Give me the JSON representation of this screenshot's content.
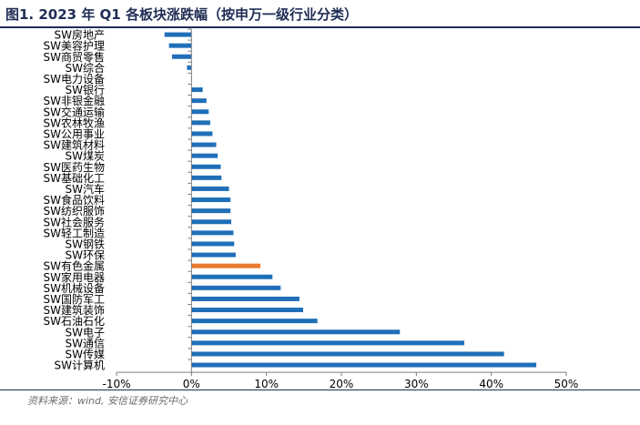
{
  "header": {
    "title": "图1. 2023 年 Q1 各板块涨跌幅（按申万一级行业分类）"
  },
  "footer": {
    "source": "资料来源：wind, 安信证券研究中心"
  },
  "colors": {
    "bar": "#1f6fb8",
    "highlight": "#e8792d",
    "axis": "#7f7f7f",
    "text": "#000000",
    "title": "#1f2d55"
  },
  "chart_data": {
    "type": "bar",
    "orientation": "horizontal",
    "title": "图1. 2023 年 Q1 各板块涨跌幅（按申万一级行业分类）",
    "xlabel": "",
    "ylabel": "",
    "xlim": [
      -10,
      50
    ],
    "xticks": [
      -10,
      0,
      10,
      20,
      30,
      40,
      50
    ],
    "xtick_labels": [
      "-10%",
      "0%",
      "10%",
      "20%",
      "30%",
      "40%",
      "50%"
    ],
    "grid": false,
    "legend": "none",
    "highlight_category": "SW有色金属",
    "categories": [
      "SW房地产",
      "SW美容护理",
      "SW商贸零售",
      "SW综合",
      "SW电力设备",
      "SW银行",
      "SW非银金融",
      "SW交通运输",
      "SW农林牧渔",
      "SW公用事业",
      "SW建筑材料",
      "SW煤炭",
      "SW医药生物",
      "SW基础化工",
      "SW汽车",
      "SW食品饮料",
      "SW纺织服饰",
      "SW社会服务",
      "SW轻工制造",
      "SW钢铁",
      "SW环保",
      "SW有色金属",
      "SW家用电器",
      "SW机械设备",
      "SW国防军工",
      "SW建筑装饰",
      "SW石油石化",
      "SW电子",
      "SW通信",
      "SW传媒",
      "SW计算机"
    ],
    "values": [
      -3.6,
      -3.0,
      -2.6,
      -0.6,
      0.0,
      1.5,
      2.0,
      2.3,
      2.5,
      2.8,
      3.3,
      3.5,
      3.9,
      4.0,
      5.0,
      5.2,
      5.2,
      5.3,
      5.6,
      5.7,
      5.9,
      9.2,
      10.8,
      11.9,
      14.4,
      14.9,
      16.8,
      27.8,
      36.4,
      41.7,
      46.0
    ]
  }
}
